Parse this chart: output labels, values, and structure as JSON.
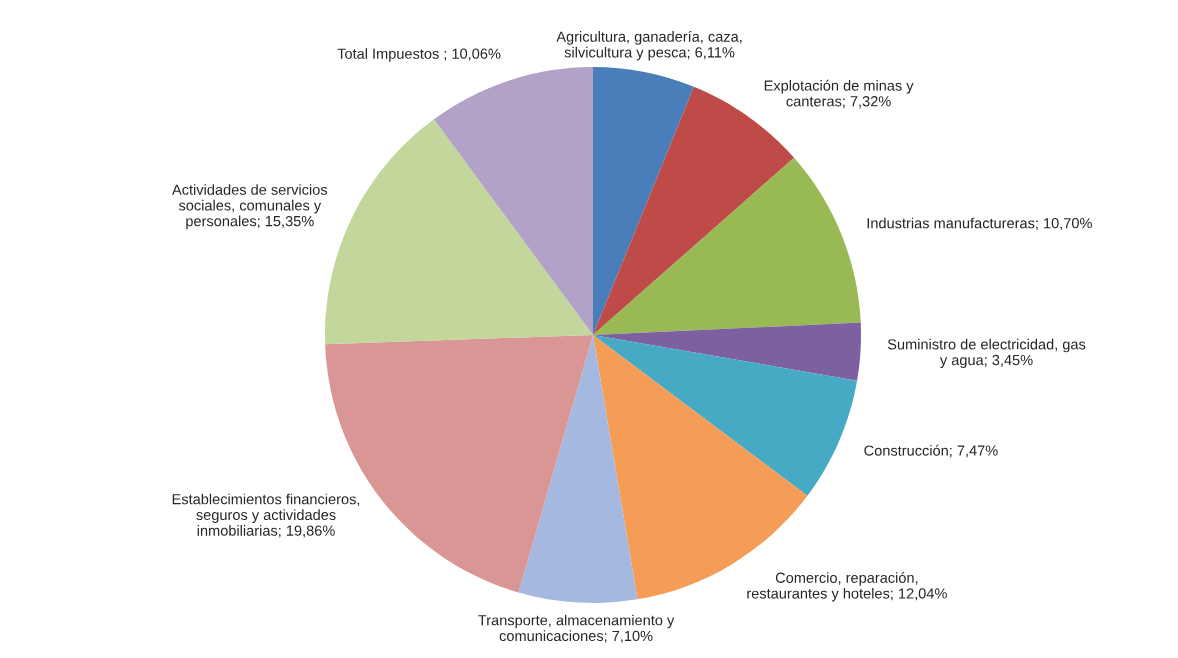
{
  "chart_data": {
    "type": "pie",
    "categories": [
      "Agricultura, ganadería, caza,\nsilvicultura y pesca",
      "Explotación de minas y\ncanteras",
      "Industrias manufactureras",
      "Suministro de electricidad, gas\ny agua",
      "Construcción",
      "Comercio, reparación,\nrestaurantes y hoteles",
      "Transporte, almacenamiento y\ncomunicaciones",
      "Establecimientos financieros,\nseguros y actividades\ninmobiliarias",
      "Actividades de servicios\nsociales, comunales y\npersonales",
      "Total Impuestos "
    ],
    "values": [
      6.11,
      7.32,
      10.7,
      3.45,
      7.47,
      12.04,
      7.1,
      19.86,
      15.35,
      10.06
    ],
    "value_labels": [
      "6,11%",
      "7,32%",
      "10,70%",
      "3,45%",
      "7,47%",
      "12,04%",
      "7,10%",
      "19,86%",
      "15,35%",
      "10,06%"
    ],
    "colors": [
      "#4a7ebb",
      "#be4b48",
      "#98b954",
      "#7d60a0",
      "#46aac5",
      "#f59d56",
      "#a5b9e0",
      "#d99694",
      "#c3d69b",
      "#b3a2c7"
    ],
    "legend": false
  }
}
